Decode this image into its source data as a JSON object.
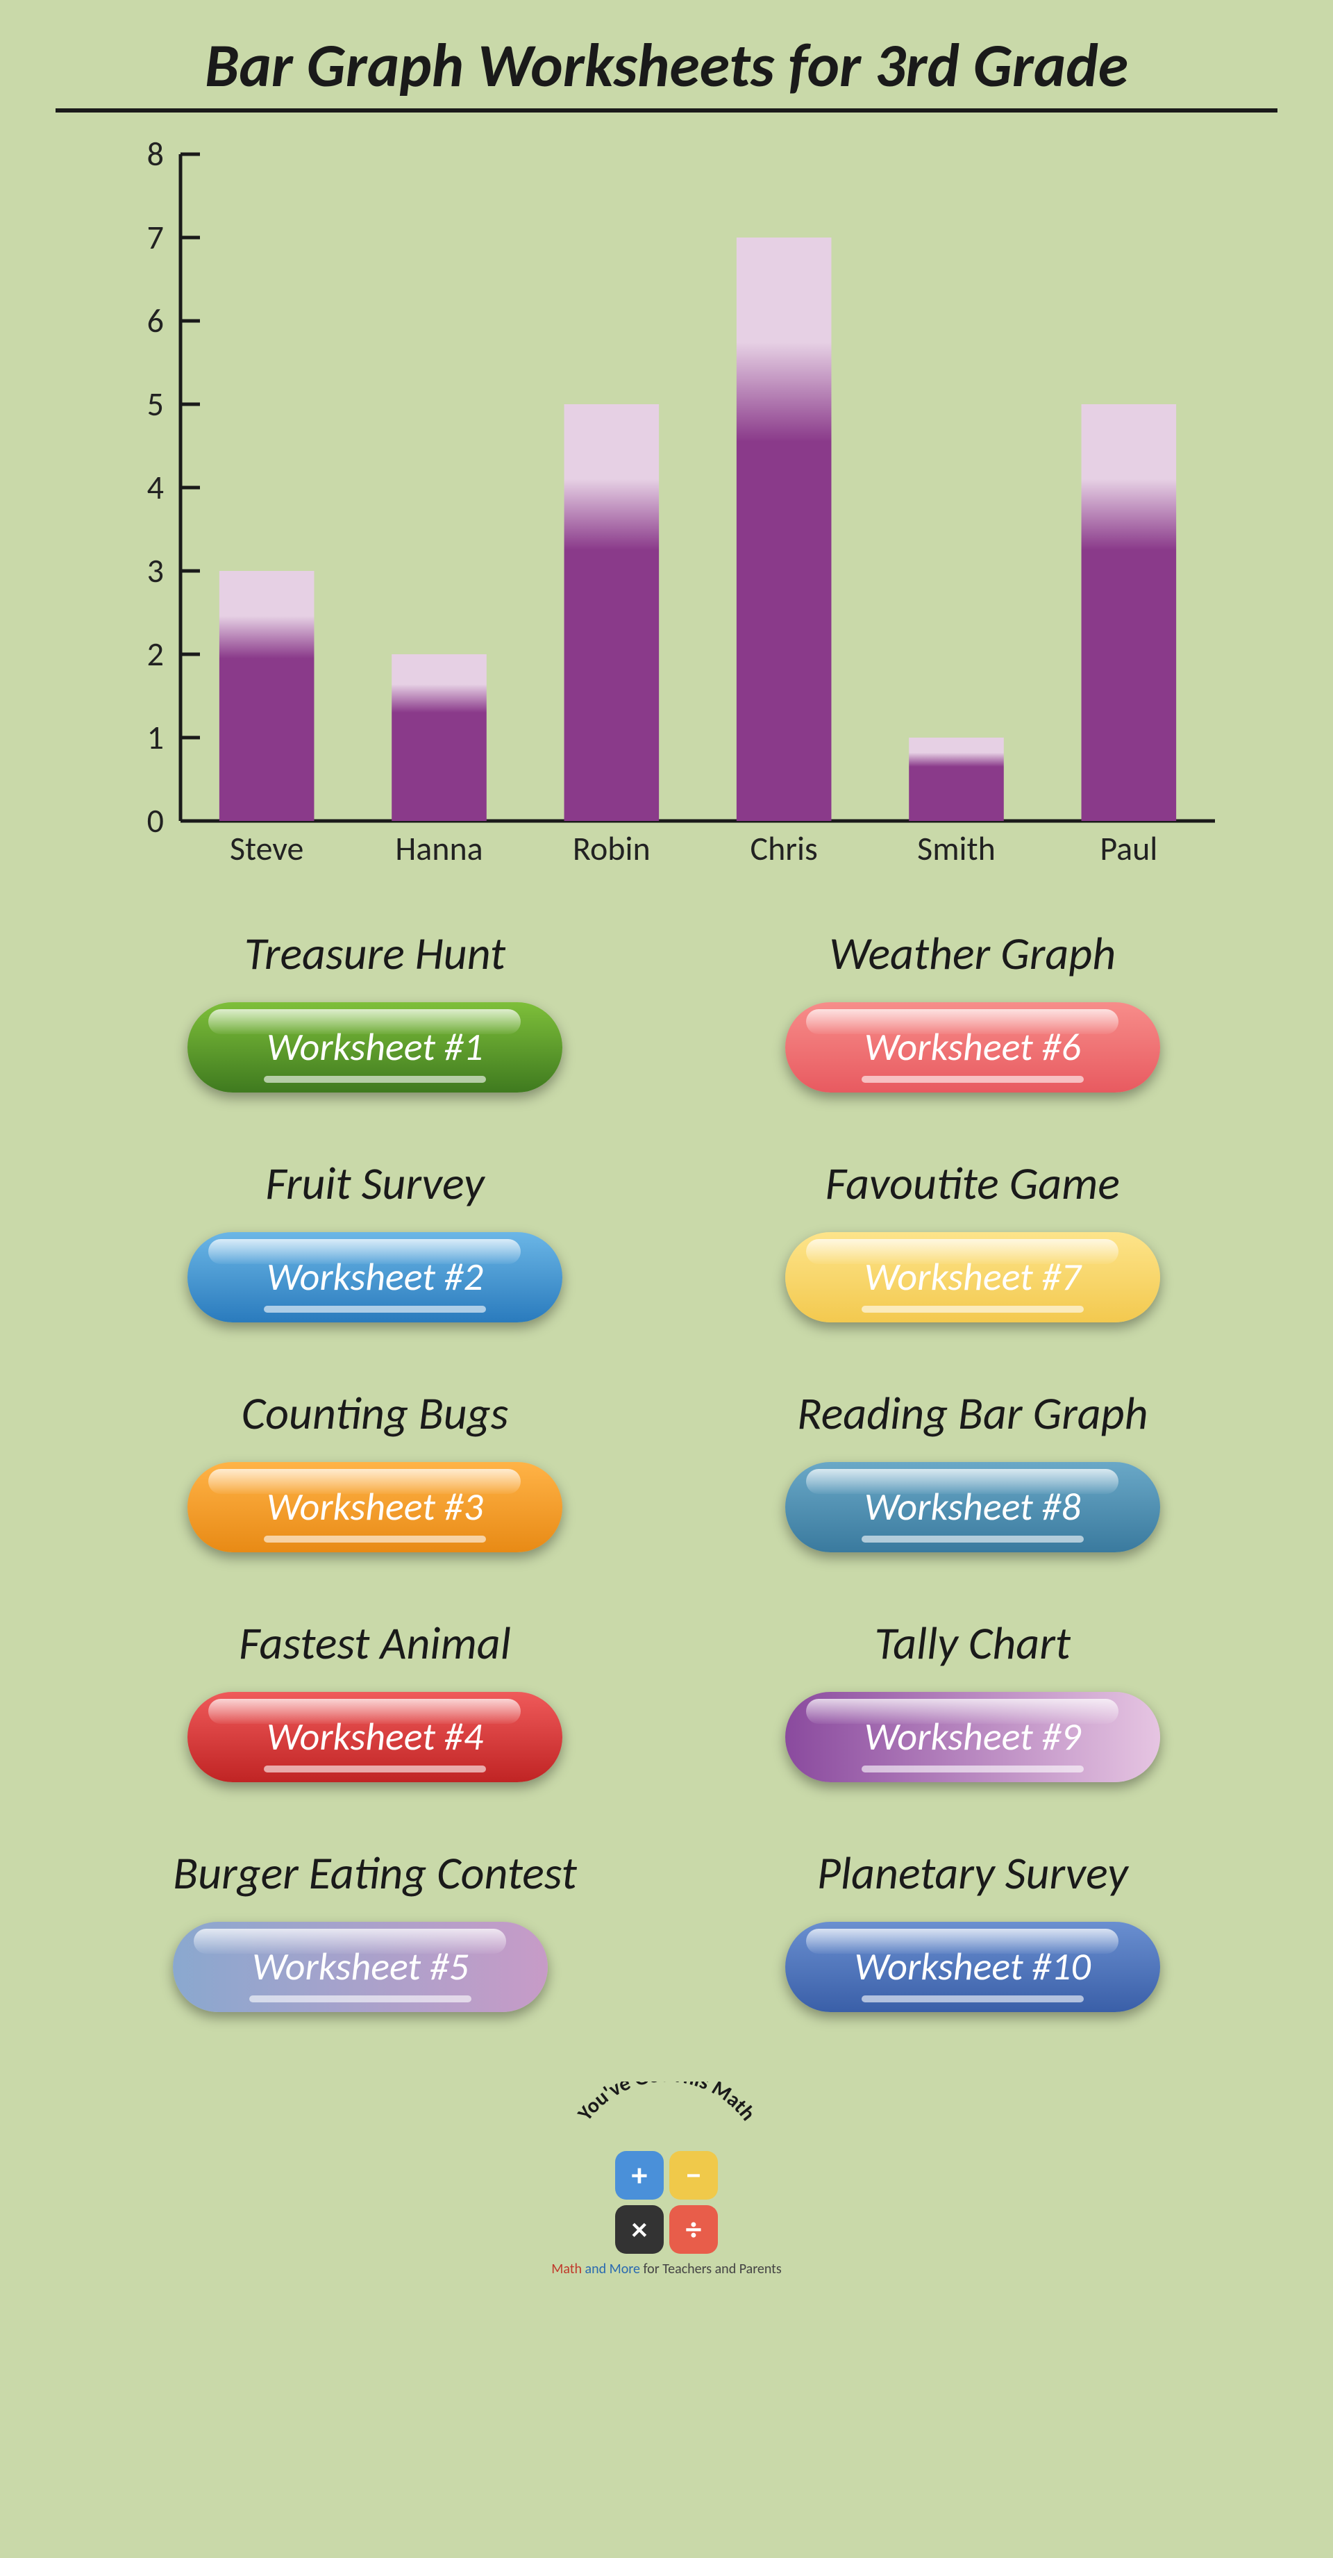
{
  "title": "Bar Graph Worksheets for 3rd Grade",
  "chart": {
    "type": "bar",
    "categories": [
      "Steve",
      "Hanna",
      "Robin",
      "Chris",
      "Smith",
      "Paul"
    ],
    "values": [
      3,
      2,
      5,
      7,
      1,
      5
    ],
    "ylim": [
      0,
      8
    ],
    "ytick_step": 1,
    "bar_gradient_top_color": "#e6d0e4",
    "bar_gradient_bottom_color": "#8a3a8a",
    "axis_color": "#1a1a1a",
    "background_color": "#c9d9a9",
    "bar_width": 0.55,
    "label_fontsize": 48
  },
  "worksheets_left": [
    {
      "title": "Treasure Hunt",
      "button": "Worksheet #1",
      "bg": "linear-gradient(to bottom,#7ebf3a,#3f7a1f)"
    },
    {
      "title": "Fruit Survey",
      "button": "Worksheet #2",
      "bg": "linear-gradient(to bottom,#6bb6e6,#2a7bbd)"
    },
    {
      "title": "Counting Bugs",
      "button": "Worksheet #3",
      "bg": "linear-gradient(to bottom,#ffb347,#e88a15)"
    },
    {
      "title": "Fastest Animal",
      "button": "Worksheet #4",
      "bg": "linear-gradient(to bottom,#ef5a5a,#c02424)"
    },
    {
      "title": "Burger Eating Contest",
      "button": "Worksheet #5",
      "bg": "linear-gradient(to right,#8aa8cf,#c79bc7)"
    }
  ],
  "worksheets_right": [
    {
      "title": "Weather Graph",
      "button": "Worksheet #6",
      "bg": "linear-gradient(to bottom,#f78d8a,#e85a60)"
    },
    {
      "title": "Favoutite Game",
      "button": "Worksheet #7",
      "bg": "linear-gradient(to bottom,#fde48a,#f3c94f)"
    },
    {
      "title": "Reading Bar Graph",
      "button": "Worksheet #8",
      "bg": "linear-gradient(to bottom,#6aa8c7,#3a7a9e)"
    },
    {
      "title": "Tally Chart",
      "button": "Worksheet #9",
      "bg": "linear-gradient(to right,#8a4a9e,#e6c5e2)"
    },
    {
      "title": "Planetary Survey",
      "button": "Worksheet #10",
      "bg": "linear-gradient(to bottom,#6a8fd0,#3a5fa8)"
    }
  ],
  "logo": {
    "arc_text": "You've Got This Math",
    "tagline_prefix": "Math ",
    "tagline_mid": "and More ",
    "tagline_suffix": "for Teachers and Parents",
    "ops": {
      "plus": "+",
      "minus": "−",
      "times": "×",
      "div": "÷"
    }
  }
}
